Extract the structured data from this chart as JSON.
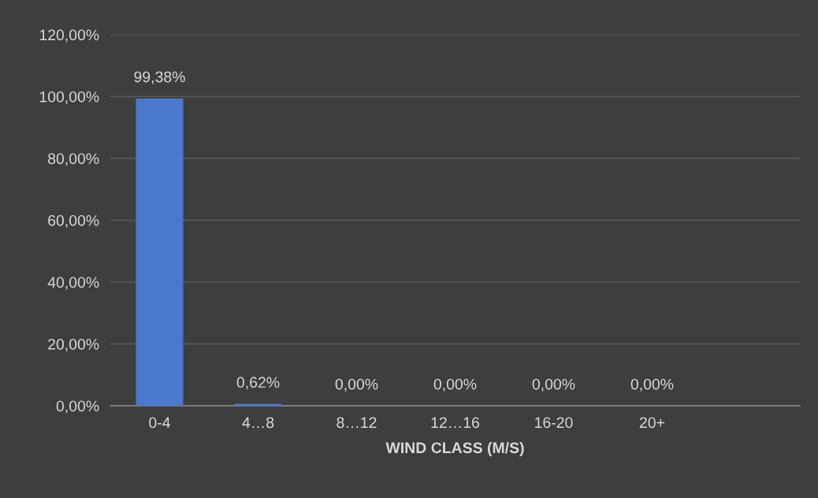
{
  "chart_data": {
    "type": "bar",
    "xlabel": "WIND CLASS (M/S)",
    "categories": [
      "0-4",
      "4…8",
      "8…12",
      "12…16",
      "16-20",
      "20+",
      null
    ],
    "values": [
      99.38,
      0.62,
      0,
      0,
      0,
      0,
      null
    ],
    "color": "#4a78cc",
    "value_labels": [
      "99,38%",
      "0,62%",
      "0,00%",
      "0,00%",
      "0,00%",
      "0,00%",
      null
    ],
    "ylim": [
      0,
      120
    ],
    "yticks": [
      {
        "value": 0,
        "label": "0,00%"
      },
      {
        "value": 20,
        "label": "20,00%"
      },
      {
        "value": 40,
        "label": "40,00%"
      },
      {
        "value": 60,
        "label": "60,00%"
      },
      {
        "value": 80,
        "label": "80,00%"
      },
      {
        "value": 100,
        "label": "100,00%"
      },
      {
        "value": 120,
        "label": "120,00%"
      }
    ],
    "grid": "y",
    "legend": false
  }
}
